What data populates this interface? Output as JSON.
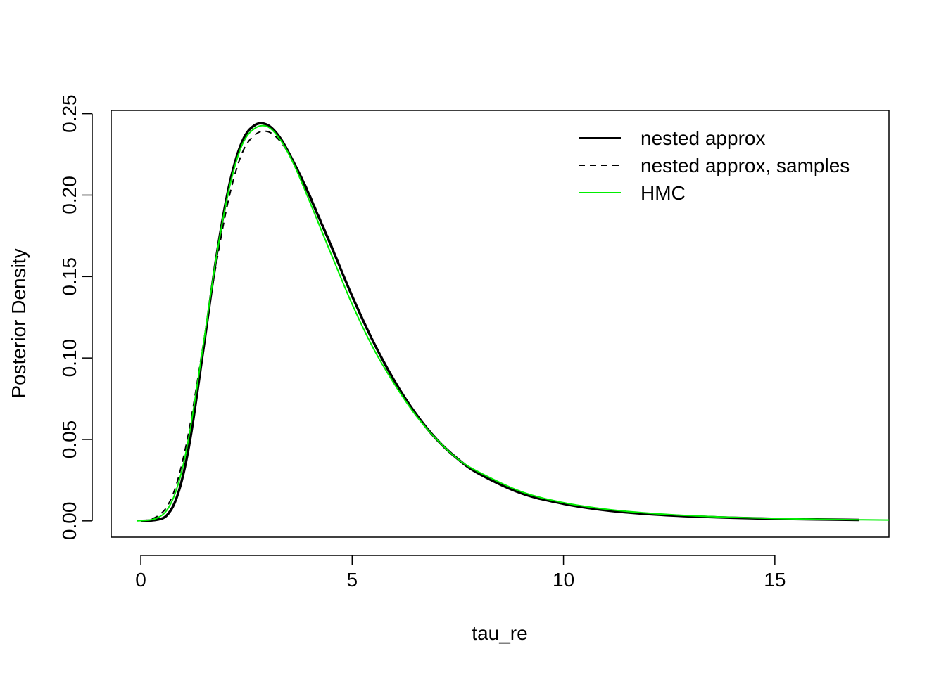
{
  "chart_data": {
    "type": "line",
    "title": "",
    "xlabel": "tau_re",
    "ylabel": "Posterior Density",
    "xlim": [
      -0.7,
      17.7
    ],
    "ylim": [
      -0.01,
      0.252
    ],
    "x_ticks": [
      0,
      5,
      10,
      15
    ],
    "x_tick_labels": [
      "0",
      "5",
      "10",
      "15"
    ],
    "y_ticks": [
      0.0,
      0.05,
      0.1,
      0.15,
      0.2,
      0.25
    ],
    "y_tick_labels": [
      "0.00",
      "0.05",
      "0.10",
      "0.15",
      "0.20",
      "0.25"
    ],
    "grid": false,
    "legend_position": "top-right",
    "legend_bordered": false,
    "series": [
      {
        "name": "nested approx",
        "color": "#000000",
        "dash": "solid",
        "x": [
          0,
          0.2,
          0.4,
          0.6,
          0.8,
          1.0,
          1.2,
          1.5,
          1.8,
          2.1,
          2.4,
          2.7,
          3.0,
          3.3,
          3.6,
          3.9,
          4.2,
          4.5,
          5.0,
          5.5,
          6.0,
          6.5,
          7.0,
          7.5,
          8.0,
          9.0,
          10.0,
          11.0,
          12.0,
          13.0,
          14.0,
          15.0,
          16.0,
          17.0
        ],
        "y": [
          0.0,
          0.0002,
          0.0008,
          0.003,
          0.011,
          0.028,
          0.055,
          0.109,
          0.164,
          0.207,
          0.233,
          0.243,
          0.243,
          0.235,
          0.221,
          0.205,
          0.187,
          0.169,
          0.138,
          0.11,
          0.086,
          0.066,
          0.05,
          0.038,
          0.029,
          0.017,
          0.0105,
          0.0065,
          0.0042,
          0.0028,
          0.0019,
          0.0013,
          0.0009,
          0.0006
        ]
      },
      {
        "name": "nested approx, samples",
        "color": "#000000",
        "dash": "dashed",
        "x": [
          0,
          0.2,
          0.4,
          0.6,
          0.8,
          1.0,
          1.2,
          1.5,
          1.8,
          2.1,
          2.4,
          2.7,
          3.0,
          3.3,
          3.6,
          3.9,
          4.2,
          4.5,
          5.0,
          5.5,
          6.0,
          6.5,
          7.0,
          7.5,
          8.0,
          9.0,
          10.0,
          11.0,
          12.0,
          13.0,
          14.0,
          15.0,
          16.0,
          17.0
        ],
        "y": [
          0.0,
          0.0008,
          0.003,
          0.008,
          0.019,
          0.038,
          0.064,
          0.112,
          0.16,
          0.2,
          0.226,
          0.237,
          0.239,
          0.233,
          0.221,
          0.206,
          0.188,
          0.17,
          0.138,
          0.11,
          0.086,
          0.066,
          0.05,
          0.038,
          0.029,
          0.017,
          0.0105,
          0.0065,
          0.0042,
          0.0028,
          0.0019,
          0.0013,
          0.0009,
          0.0006
        ]
      },
      {
        "name": "HMC",
        "color": "#00ee00",
        "dash": "solid",
        "x": [
          -0.1,
          0.2,
          0.4,
          0.6,
          0.8,
          1.0,
          1.2,
          1.5,
          1.8,
          2.1,
          2.4,
          2.7,
          3.0,
          3.3,
          3.6,
          3.9,
          4.2,
          4.5,
          5.0,
          5.5,
          6.0,
          6.5,
          7.0,
          7.5,
          8.0,
          9.0,
          10.0,
          11.0,
          12.0,
          13.0,
          14.0,
          15.0,
          16.0,
          17.0,
          17.7
        ],
        "y": [
          0.0,
          0.0005,
          0.002,
          0.006,
          0.016,
          0.034,
          0.061,
          0.112,
          0.164,
          0.205,
          0.231,
          0.241,
          0.242,
          0.234,
          0.22,
          0.202,
          0.183,
          0.164,
          0.133,
          0.106,
          0.084,
          0.065,
          0.05,
          0.038,
          0.03,
          0.018,
          0.0112,
          0.0072,
          0.0048,
          0.0032,
          0.0022,
          0.0015,
          0.001,
          0.0007,
          0.0005
        ]
      }
    ]
  }
}
